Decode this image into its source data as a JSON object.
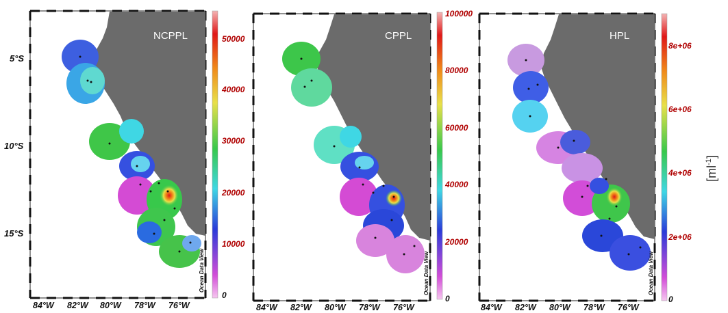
{
  "panels": [
    {
      "title": "NCPPL",
      "colorbar_ticks": [
        "50000",
        "40000",
        "30000",
        "20000",
        "10000",
        "0"
      ],
      "lon_labels": [
        "84°W",
        "82°W",
        "80°W",
        "78°W",
        "76°W"
      ],
      "lat_labels": [
        "5°S",
        "10°S",
        "15°S"
      ],
      "credit": "Ocean Data View"
    },
    {
      "title": "CPPL",
      "colorbar_ticks": [
        "100000",
        "80000",
        "60000",
        "40000",
        "20000",
        "0"
      ],
      "lon_labels": [
        "84°W",
        "82°W",
        "80°W",
        "78°W",
        "76°W"
      ],
      "credit": "Ocean Data View"
    },
    {
      "title": "HPL",
      "colorbar_ticks": [
        "8e+06",
        "6e+06",
        "4e+06",
        "2e+06",
        "0"
      ],
      "lon_labels": [
        "84°W",
        "82°W",
        "80°W",
        "78°W",
        "76°W"
      ],
      "credit": "Ocean Data View"
    }
  ],
  "unit_label": "[ml",
  "unit_sup": "-1",
  "unit_close": "]",
  "colors": {
    "land": "#6b6b6b",
    "colorbar_scale": [
      "#f0a8e8",
      "#d24dd8",
      "#2a3bd9",
      "#3fd7e4",
      "#38c84b",
      "#e8e04a",
      "#f08a1a",
      "#e01818"
    ]
  }
}
